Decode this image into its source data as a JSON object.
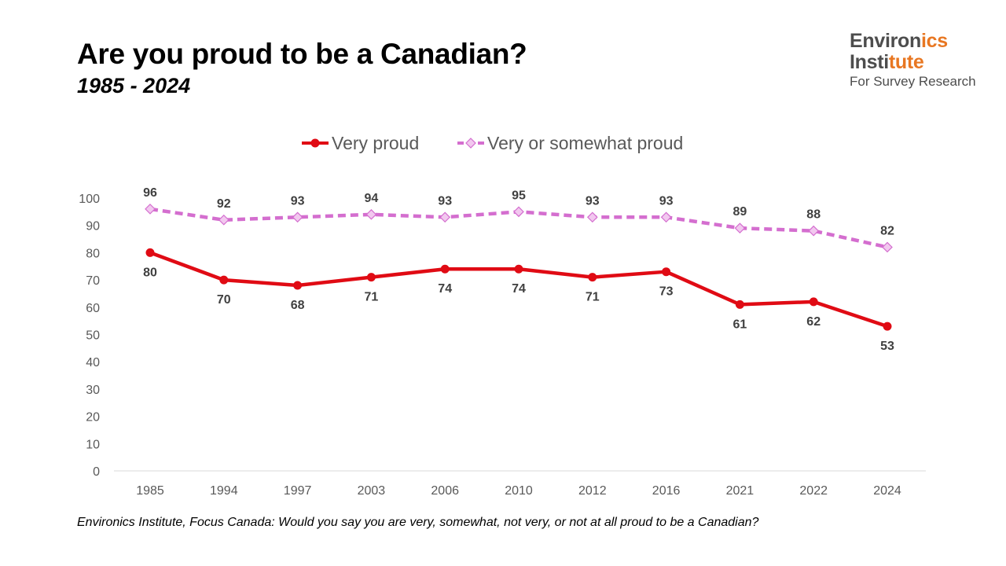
{
  "header": {
    "title": "Are you proud to be a Canadian?",
    "subtitle": "1985 - 2024"
  },
  "logo": {
    "line1_a": "Environ",
    "line1_b": "ics",
    "line2_a": "Insti",
    "line2_b": "tute",
    "line3": "For Survey Research",
    "text_color": "#4d4d4d",
    "accent_color": "#e87722"
  },
  "footnote": "Environics Institute, Focus Canada: Would you say you are very, somewhat, not very, or not at all proud to be a Canadian?",
  "chart_data": {
    "type": "line",
    "title": "Are you proud to be a Canadian?",
    "subtitle": "1985 - 2024",
    "xlabel": "",
    "ylabel": "",
    "categories": [
      "1985",
      "1994",
      "1997",
      "2003",
      "2006",
      "2010",
      "2012",
      "2016",
      "2021",
      "2022",
      "2024"
    ],
    "ylim": [
      0,
      100
    ],
    "yticks": [
      0,
      10,
      20,
      30,
      40,
      50,
      60,
      70,
      80,
      90,
      100
    ],
    "grid": false,
    "legend_position": "top-center",
    "series": [
      {
        "name": "Very proud",
        "values": [
          80,
          70,
          68,
          71,
          74,
          74,
          71,
          73,
          61,
          62,
          53
        ],
        "color": "#e00b14",
        "line_style": "solid",
        "marker": "circle",
        "label_position": "below"
      },
      {
        "name": "Very or somewhat proud",
        "values": [
          96,
          92,
          93,
          94,
          93,
          95,
          93,
          93,
          89,
          88,
          82
        ],
        "color": "#d46ecf",
        "marker_fill": "#f2c8ef",
        "line_style": "dashed",
        "marker": "diamond",
        "label_position": "above"
      }
    ]
  }
}
